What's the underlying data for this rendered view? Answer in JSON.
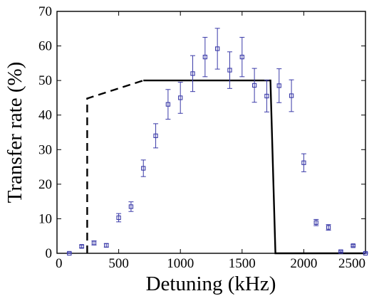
{
  "chart_data": {
    "type": "scatter",
    "title": "",
    "xlabel": "Detuning (kHz)",
    "ylabel": "Transfer rate (%)",
    "xlim": [
      0,
      2500
    ],
    "ylim": [
      0,
      70
    ],
    "x_ticks": [
      "0",
      "500",
      "1000",
      "1500",
      "2000",
      "2500"
    ],
    "y_ticks": [
      "0",
      "10",
      "20",
      "30",
      "40",
      "50",
      "60",
      "70"
    ],
    "grid": false,
    "colors": {
      "markers": "#3a3aa8",
      "curve": "#000000",
      "axes": "#000000"
    },
    "series": [
      {
        "type": "scatter_errorbars",
        "marker": "square",
        "x": [
          100,
          200,
          300,
          400,
          500,
          600,
          700,
          800,
          900,
          1000,
          1100,
          1200,
          1300,
          1400,
          1500,
          1600,
          1700,
          1800,
          1900,
          2000,
          2100,
          2200,
          2300,
          2400,
          2500
        ],
        "y": [
          0,
          2,
          3,
          2.3,
          10.3,
          13.5,
          24.6,
          34,
          43.1,
          45,
          52,
          56.8,
          59.2,
          53,
          56.8,
          48.6,
          45.5,
          48.5,
          45.6,
          26.2,
          8.9,
          7.5,
          0.5,
          2.2,
          0
        ],
        "yerr": [
          0.2,
          0.4,
          0.6,
          0.5,
          1.2,
          1.4,
          2.4,
          3.5,
          4.3,
          4.5,
          5.2,
          5.7,
          5.9,
          5.3,
          5.7,
          4.9,
          4.6,
          4.9,
          4.6,
          2.6,
          0.9,
          0.8,
          0.2,
          0.3,
          0.2
        ]
      },
      {
        "type": "line",
        "style": "dashed",
        "x": [
          245,
          245,
          700
        ],
        "y": [
          0,
          44.8,
          50
        ]
      },
      {
        "type": "line",
        "style": "solid",
        "x": [
          700,
          1730,
          1770,
          2500
        ],
        "y": [
          50,
          50,
          0,
          0
        ]
      }
    ]
  }
}
